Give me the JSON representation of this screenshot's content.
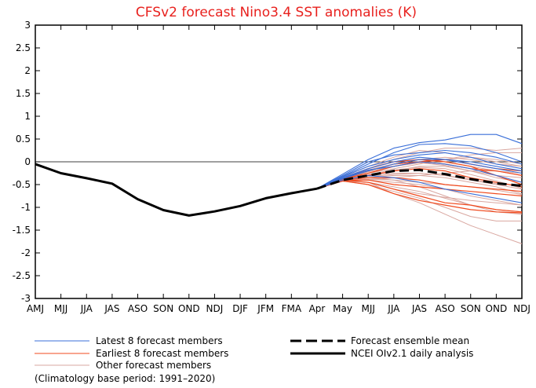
{
  "chart_data": {
    "type": "line",
    "title": "CFSv2 forecast Nino3.4 SST anomalies (K)",
    "x": [
      "AMJ",
      "MJJ",
      "JJA",
      "JAS",
      "ASO",
      "SON",
      "OND",
      "NDJ",
      "DJF",
      "JFM",
      "FMA",
      "Apr",
      "May",
      "MJJ",
      "JJA",
      "JAS",
      "ASO",
      "SON",
      "OND",
      "NDJ"
    ],
    "ylim": [
      -3,
      3
    ],
    "yticks": [
      -3,
      -2.5,
      -2,
      -1.5,
      -1,
      -0.5,
      0,
      0.5,
      1,
      1.5,
      2,
      2.5,
      3
    ],
    "ytick_labels": [
      "-3",
      "-2.5",
      "-2",
      "-1.5",
      "-1",
      "-0.5",
      "0",
      "0.5",
      "1",
      "1.5",
      "2",
      "2.5",
      "3"
    ],
    "grid": false,
    "reference_line": 0,
    "legend_entries": {
      "latest": "Latest 8 forecast members",
      "earliest": "Earliest 8 forecast members",
      "other": "Other forecast members",
      "mean": "Forecast ensemble mean",
      "analysis": "NCEI OIv2.1 daily analysis"
    },
    "colors": {
      "latest": "#3a6fd8",
      "earliest": "#f04a1e",
      "other": "#d9a7a0",
      "mean": "#000000",
      "analysis": "#000000",
      "title": "#e8211e"
    },
    "analysis": [
      -0.05,
      -0.25,
      -0.36,
      -0.48,
      -0.82,
      -1.06,
      -1.18,
      -1.09,
      -0.97,
      -0.8,
      -0.69,
      -0.59
    ],
    "forecast_ensemble_mean": [
      -0.59,
      -0.4,
      -0.3,
      -0.2,
      -0.18,
      -0.27,
      -0.38,
      -0.47,
      -0.53
    ],
    "forecast_members": {
      "latest": [
        [
          -0.59,
          -0.27,
          0.05,
          0.3,
          0.42,
          0.48,
          0.6,
          0.6,
          0.4
        ],
        [
          -0.59,
          -0.32,
          -0.05,
          0.2,
          0.38,
          0.4,
          0.35,
          0.2,
          0.0
        ],
        [
          -0.59,
          -0.3,
          0.0,
          0.15,
          0.2,
          0.25,
          0.2,
          0.1,
          -0.05
        ],
        [
          -0.59,
          -0.35,
          -0.15,
          0.0,
          0.1,
          0.05,
          -0.05,
          -0.15,
          -0.25
        ],
        [
          -0.59,
          -0.37,
          -0.2,
          -0.05,
          0.05,
          0.05,
          0.0,
          -0.1,
          -0.2
        ],
        [
          -0.59,
          -0.4,
          -0.3,
          -0.35,
          -0.45,
          -0.6,
          -0.7,
          -0.8,
          -0.9
        ],
        [
          -0.59,
          -0.36,
          -0.18,
          -0.1,
          0.0,
          -0.05,
          -0.15,
          -0.3,
          -0.45
        ],
        [
          -0.59,
          -0.33,
          -0.1,
          0.05,
          0.15,
          0.2,
          0.1,
          -0.05,
          -0.15
        ]
      ],
      "earliest": [
        [
          -0.59,
          -0.4,
          -0.45,
          -0.6,
          -0.75,
          -0.9,
          -0.95,
          -1.05,
          -1.1
        ],
        [
          -0.59,
          -0.42,
          -0.5,
          -0.7,
          -0.85,
          -0.95,
          -1.05,
          -1.1,
          -1.12
        ],
        [
          -0.59,
          -0.38,
          -0.25,
          -0.1,
          0.0,
          0.05,
          -0.05,
          -0.15,
          -0.2
        ],
        [
          -0.59,
          -0.36,
          -0.15,
          0.0,
          0.05,
          0.0,
          -0.1,
          -0.3,
          -0.5
        ],
        [
          -0.59,
          -0.4,
          -0.35,
          -0.35,
          -0.4,
          -0.5,
          -0.55,
          -0.6,
          -0.65
        ],
        [
          -0.59,
          -0.39,
          -0.3,
          -0.2,
          -0.15,
          -0.2,
          -0.35,
          -0.45,
          -0.55
        ],
        [
          -0.59,
          -0.37,
          -0.2,
          -0.05,
          0.0,
          -0.05,
          -0.15,
          -0.2,
          -0.3
        ],
        [
          -0.59,
          -0.41,
          -0.4,
          -0.5,
          -0.55,
          -0.6,
          -0.65,
          -0.7,
          -0.75
        ]
      ],
      "other": [
        [
          -0.59,
          -0.4,
          -0.45,
          -0.7,
          -0.9,
          -1.15,
          -1.4,
          -1.6,
          -1.8
        ],
        [
          -0.59,
          -0.42,
          -0.5,
          -0.65,
          -0.8,
          -1.0,
          -1.2,
          -1.3,
          -1.3
        ],
        [
          -0.59,
          -0.38,
          -0.35,
          -0.4,
          -0.55,
          -0.75,
          -0.95,
          -1.1,
          -1.15
        ],
        [
          -0.59,
          -0.35,
          -0.15,
          0.05,
          0.2,
          0.3,
          0.3,
          0.25,
          0.3
        ],
        [
          -0.59,
          -0.37,
          -0.25,
          -0.1,
          0.0,
          0.05,
          0.1,
          0.05,
          -0.05
        ],
        [
          -0.59,
          -0.39,
          -0.3,
          -0.25,
          -0.25,
          -0.3,
          -0.4,
          -0.5,
          -0.6
        ],
        [
          -0.59,
          -0.41,
          -0.4,
          -0.45,
          -0.5,
          -0.6,
          -0.75,
          -0.85,
          -0.95
        ],
        [
          -0.59,
          -0.36,
          -0.2,
          -0.05,
          0.05,
          0.0,
          -0.1,
          -0.2,
          -0.3
        ],
        [
          -0.59,
          -0.4,
          -0.35,
          -0.3,
          -0.3,
          -0.35,
          -0.45,
          -0.55,
          -0.7
        ],
        [
          -0.59,
          -0.34,
          -0.1,
          0.1,
          0.25,
          0.2,
          0.1,
          0.0,
          -0.1
        ],
        [
          -0.59,
          -0.43,
          -0.45,
          -0.55,
          -0.65,
          -0.8,
          -0.95,
          -1.05,
          -1.1
        ],
        [
          -0.59,
          -0.38,
          -0.3,
          -0.2,
          -0.1,
          -0.1,
          -0.2,
          -0.3,
          -0.35
        ],
        [
          -0.59,
          -0.37,
          -0.22,
          -0.1,
          -0.02,
          -0.08,
          -0.2,
          -0.35,
          -0.45
        ],
        [
          -0.59,
          -0.4,
          -0.38,
          -0.4,
          -0.45,
          -0.5,
          -0.55,
          -0.62,
          -0.72
        ],
        [
          -0.59,
          -0.36,
          -0.25,
          -0.15,
          -0.05,
          0.05,
          0.15,
          0.2,
          0.2
        ],
        [
          -0.59,
          -0.42,
          -0.4,
          -0.35,
          -0.3,
          -0.25,
          -0.2,
          -0.2,
          -0.25
        ],
        [
          -0.59,
          -0.39,
          -0.28,
          -0.18,
          -0.12,
          -0.15,
          -0.28,
          -0.42,
          -0.58
        ],
        [
          -0.59,
          -0.41,
          -0.45,
          -0.6,
          -0.7,
          -0.78,
          -0.85,
          -0.9,
          -0.95
        ],
        [
          -0.59,
          -0.35,
          -0.18,
          -0.05,
          0.05,
          0.1,
          0.05,
          -0.05,
          -0.1
        ],
        [
          -0.59,
          -0.38,
          -0.32,
          -0.28,
          -0.25,
          -0.3,
          -0.38,
          -0.48,
          -0.52
        ]
      ]
    },
    "footnote": "(Climatology base period: 1991–2020)"
  }
}
